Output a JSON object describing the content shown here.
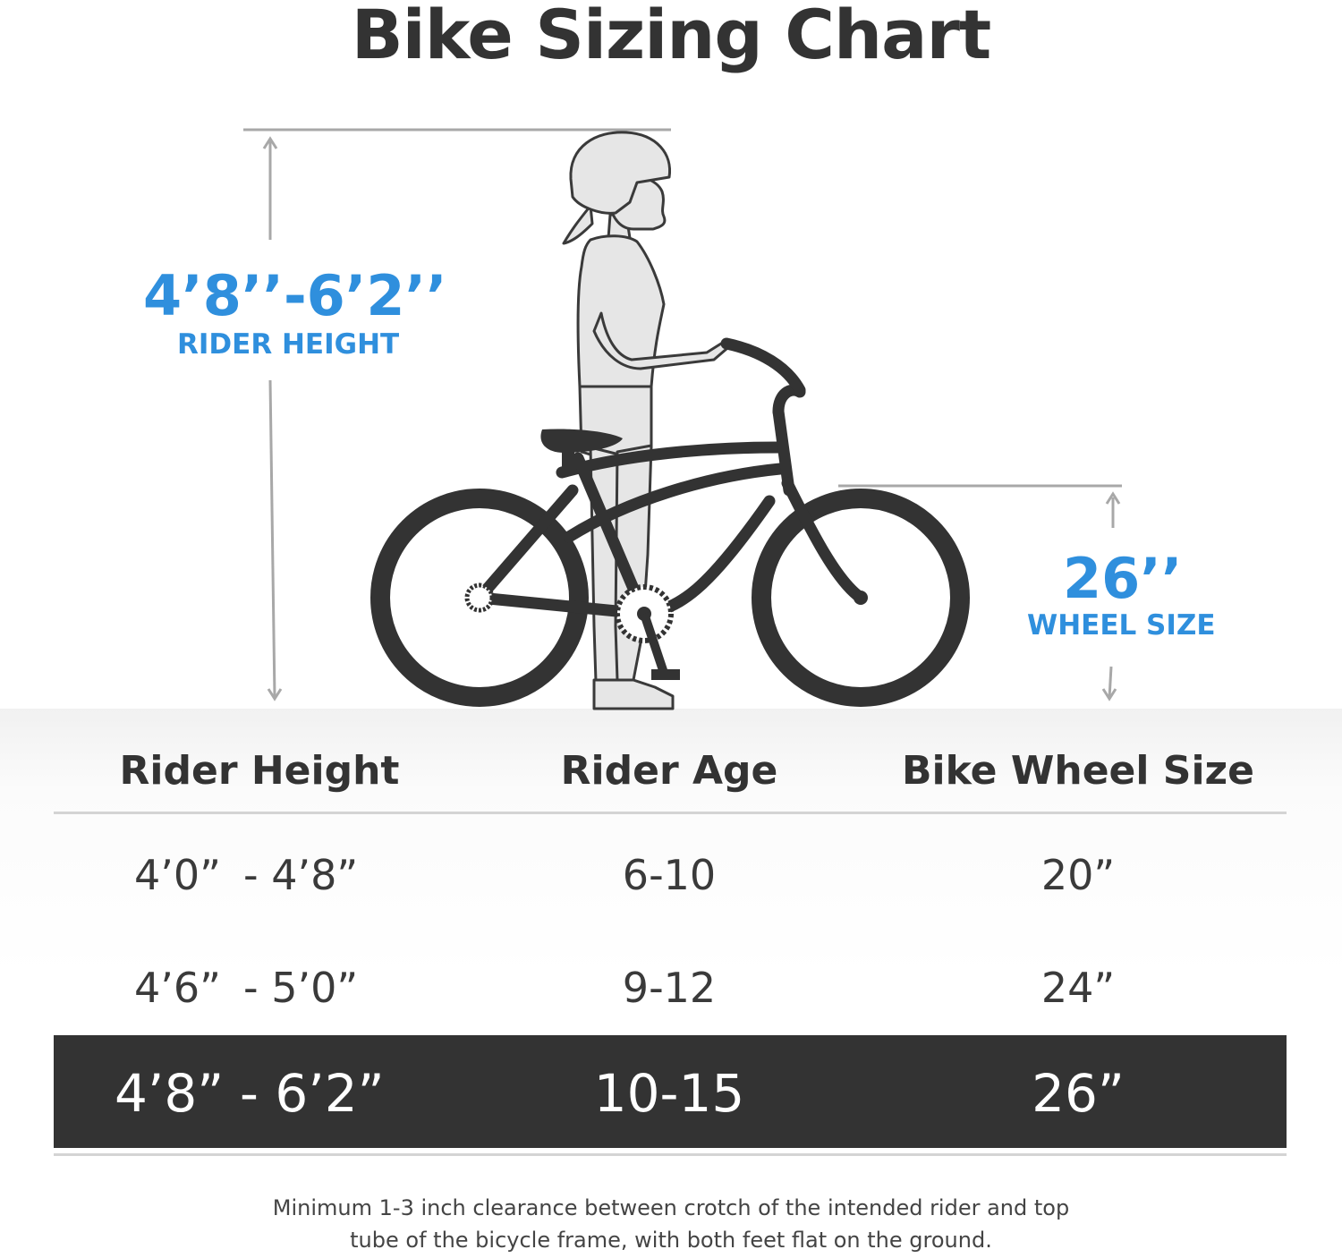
{
  "title": "Bike Sizing Chart",
  "callouts": {
    "rider_height_value": "4’8’’-6’2’’",
    "rider_height_label": "RIDER HEIGHT",
    "wheel_size_value": "26’’",
    "wheel_size_label": "WHEEL SIZE"
  },
  "colors": {
    "accent": "#2f8fdd",
    "text": "#333333",
    "highlight_row": "#333333"
  },
  "table": {
    "headers": [
      "Rider Height",
      "Rider Age",
      "Bike Wheel Size"
    ],
    "rows": [
      {
        "height_from": "4’0”",
        "height_to": "- 4’8”",
        "age": "6-10",
        "wheel": "20”",
        "highlighted": false
      },
      {
        "height_from": "4’6”",
        "height_to": "- 5’0”",
        "age": "9-12",
        "wheel": "24”",
        "highlighted": false
      },
      {
        "height_from": "4’8”",
        "height_to": "- 6’2”",
        "age": "10-15",
        "wheel": "26”",
        "highlighted": true
      }
    ]
  },
  "footnote": {
    "line1": "Minimum 1-3 inch clearance between crotch of the intended rider and top",
    "line2": "tube of the bicycle frame, with both feet flat on the ground."
  },
  "illustration": {
    "icons": [
      "rider-figure-icon",
      "bicycle-icon"
    ]
  }
}
